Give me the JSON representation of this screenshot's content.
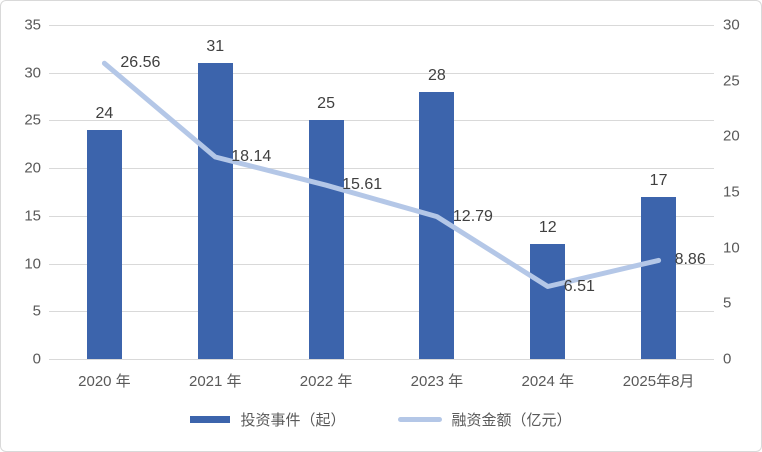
{
  "chart_data": {
    "type": "combo",
    "categories": [
      "2020 年",
      "2021 年",
      "2022 年",
      "2023 年",
      "2024 年",
      "2025年8月"
    ],
    "series": [
      {
        "name": "投资事件（起）",
        "type": "bar",
        "axis": "left",
        "color": "#3c64ac",
        "values": [
          24,
          31,
          25,
          28,
          12,
          17
        ]
      },
      {
        "name": "融资金额（亿元）",
        "type": "line",
        "axis": "right",
        "color": "#b4c7e7",
        "values": [
          26.56,
          18.14,
          15.61,
          12.79,
          6.51,
          8.86
        ]
      }
    ],
    "left_axis": {
      "min": 0,
      "max": 35,
      "step": 5,
      "ticks": [
        0,
        5,
        10,
        15,
        20,
        25,
        30,
        35
      ]
    },
    "right_axis": {
      "min": 0,
      "max": 30,
      "step": 5,
      "ticks": [
        0,
        5,
        10,
        15,
        20,
        25,
        30
      ]
    },
    "grid": true,
    "legend_position": "bottom",
    "title": "",
    "xlabel": "",
    "ylabel": "",
    "colors": {
      "gridline": "#d9d9d9",
      "axis_text": "#595959",
      "data_label_text": "#404040",
      "frame_border": "#d9d9d9",
      "background": "#ffffff"
    }
  }
}
